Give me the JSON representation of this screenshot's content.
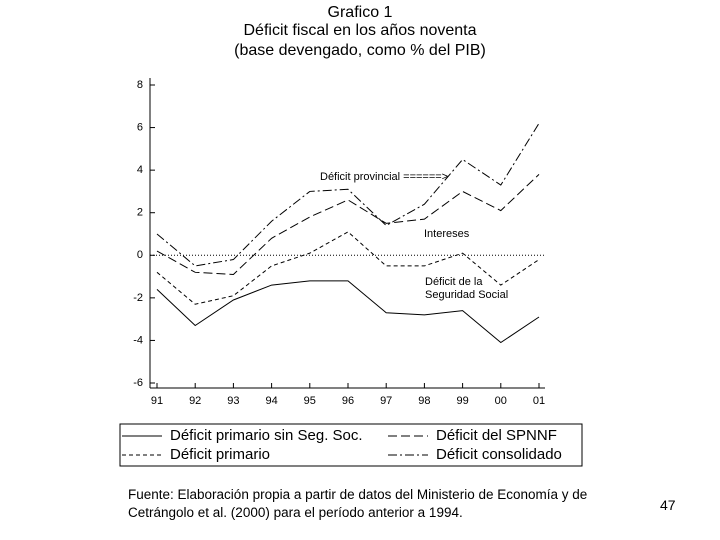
{
  "chart_data": {
    "type": "line",
    "title": "Grafico 1",
    "subtitle": "Déficit fiscal en los años noventa",
    "subtitle2": "(base devengado, como % del PIB)",
    "categories": [
      "91",
      "92",
      "93",
      "94",
      "95",
      "96",
      "97",
      "98",
      "99",
      "00",
      "01"
    ],
    "series": [
      {
        "name": "Déficit primario sin Seg. Soc.",
        "color": "#000000",
        "style": "solid",
        "values": [
          -1.6,
          -3.3,
          -2.1,
          -1.4,
          -1.2,
          -1.2,
          -2.7,
          -2.8,
          -2.6,
          -4.1,
          -2.9
        ]
      },
      {
        "name": "Déficit del SPNNF",
        "color": "#000000",
        "style": "long-dash",
        "values": [
          0.2,
          -0.8,
          -0.9,
          0.8,
          1.8,
          2.6,
          1.5,
          1.7,
          3.0,
          2.1,
          3.8
        ]
      },
      {
        "name": "Déficit primario",
        "color": "#000000",
        "style": "short-dash",
        "values": [
          -0.8,
          -2.3,
          -1.9,
          -0.5,
          0.1,
          1.1,
          -0.5,
          -0.5,
          0.1,
          -1.4,
          -0.2
        ]
      },
      {
        "name": "Déficit consolidado",
        "color": "#000000",
        "style": "dash-dot",
        "values": [
          1.0,
          -0.5,
          -0.2,
          1.6,
          3.0,
          3.1,
          1.4,
          2.4,
          4.5,
          3.3,
          6.2
        ]
      }
    ],
    "annotations": [
      "Déficit provincial ======>",
      "Intereses",
      "Déficit de la Seguridad Social"
    ],
    "ylim": [
      -6,
      8
    ],
    "yticks": [
      -6,
      -4,
      -2,
      0,
      2,
      4,
      6,
      8
    ],
    "zero_line": true
  },
  "source": "Fuente: Elaboración propia a partir de datos del Ministerio de Economía y de Cetrángolo et al. (2000) para el período anterior a 1994.",
  "page_number": "47"
}
